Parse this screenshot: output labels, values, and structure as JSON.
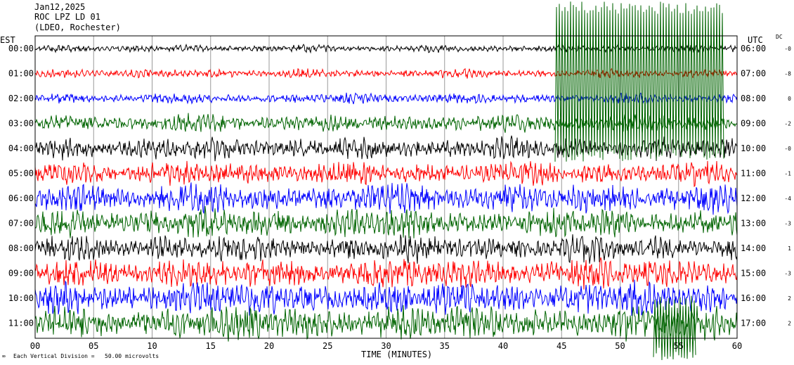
{
  "header": {
    "date": "Jan12,2025",
    "station": "ROC LPZ LD 01",
    "network": "(LDEO, Rochester)"
  },
  "axis_left_title": "EST",
  "axis_right_title": "UTC",
  "dc_title": "DC",
  "footer": {
    "scale_note": "Each Vertical Division =   50.00 microvolts"
  },
  "chart_data": {
    "type": "line",
    "title": "",
    "xlabel": "TIME (MINUTES)",
    "ylabel": "",
    "xlim": [
      0,
      60
    ],
    "x_ticks": [
      "00",
      "05",
      "10",
      "15",
      "20",
      "25",
      "30",
      "35",
      "40",
      "45",
      "50",
      "55",
      "60"
    ],
    "left_times": [
      "00:00",
      "01:00",
      "02:00",
      "03:00",
      "04:00",
      "05:00",
      "06:00",
      "07:00",
      "08:00",
      "09:00",
      "10:00",
      "11:00"
    ],
    "right_times": [
      "06:00",
      "07:00",
      "08:00",
      "09:00",
      "10:00",
      "11:00",
      "12:00",
      "13:00",
      "14:00",
      "15:00",
      "16:00",
      "17:00"
    ],
    "dc_offsets": [
      "-0",
      "-8",
      "0",
      "-2",
      "-0",
      "-1",
      "-4",
      "-3",
      "1",
      "-3",
      "2",
      "2"
    ],
    "trace_colors": [
      "#000000",
      "#ff0000",
      "#0000ff",
      "#006400"
    ],
    "amplitudes": [
      0.25,
      0.3,
      0.35,
      0.6,
      0.75,
      0.8,
      1.0,
      1.0,
      0.9,
      1.0,
      1.1,
      1.2
    ]
  }
}
